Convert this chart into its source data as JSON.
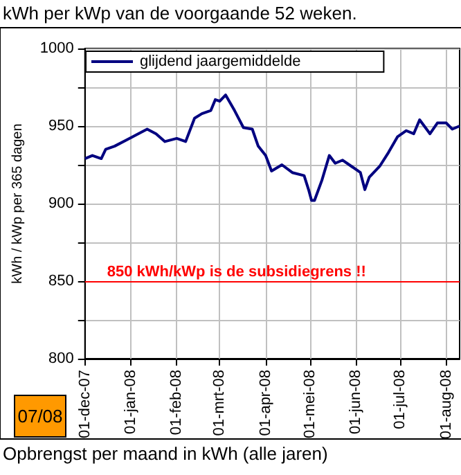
{
  "chart_data": {
    "type": "line",
    "title": "kWh per kWp van de voorgaande 52 weken.",
    "ylabel": "kWh / kWp per 365 dagen",
    "annotations": [
      "07/08",
      "Opbrengst per maand in kWh (alle jaren)"
    ],
    "series": [
      {
        "name": "glijdend jaargemiddelde",
        "color": "#000080",
        "x": [
          "2007-12-01",
          "2007-12-06",
          "2007-12-12",
          "2007-12-15",
          "2007-12-21",
          "2007-12-29",
          "2008-01-06",
          "2008-01-12",
          "2008-01-18",
          "2008-01-24",
          "2008-02-01",
          "2008-02-07",
          "2008-02-13",
          "2008-02-18",
          "2008-02-24",
          "2008-02-27",
          "2008-03-01",
          "2008-03-05",
          "2008-03-11",
          "2008-03-17",
          "2008-03-23",
          "2008-03-27",
          "2008-04-01",
          "2008-04-05",
          "2008-04-12",
          "2008-04-19",
          "2008-04-27",
          "2008-04-30",
          "2008-05-02",
          "2008-05-04",
          "2008-05-09",
          "2008-05-14",
          "2008-05-18",
          "2008-05-23",
          "2008-05-29",
          "2008-06-04",
          "2008-06-07",
          "2008-06-10",
          "2008-06-17",
          "2008-06-23",
          "2008-06-29",
          "2008-07-05",
          "2008-07-10",
          "2008-07-14",
          "2008-07-21",
          "2008-07-26",
          "2008-08-01",
          "2008-08-05",
          "2008-08-10"
        ],
        "values": [
          929,
          931,
          929,
          935,
          937,
          941,
          945,
          948,
          945,
          940,
          942,
          940,
          955,
          958,
          960,
          967,
          966,
          970,
          960,
          949,
          948,
          937,
          931,
          921,
          925,
          920,
          918,
          909,
          902,
          902,
          915,
          931,
          926,
          928,
          924,
          920,
          909,
          917,
          924,
          933,
          943,
          947,
          945,
          954,
          945,
          952,
          952,
          948,
          950
        ]
      }
    ],
    "xlim": [
      "2007-12-01",
      "2008-08-10"
    ],
    "xticks": [
      {
        "value": "2007-12-01",
        "label": "01-dec-07"
      },
      {
        "value": "2008-01-01",
        "label": "01-jan-08"
      },
      {
        "value": "2008-02-01",
        "label": "01-feb-08"
      },
      {
        "value": "2008-03-01",
        "label": "01-mrt-08"
      },
      {
        "value": "2008-04-01",
        "label": "01-apr-08"
      },
      {
        "value": "2008-05-01",
        "label": "01-mei-08"
      },
      {
        "value": "2008-06-01",
        "label": "01-jun-08"
      },
      {
        "value": "2008-07-01",
        "label": "01-jul-08"
      },
      {
        "value": "2008-08-01",
        "label": "01-aug-08"
      }
    ],
    "ylim": [
      800,
      1000
    ],
    "yticks": [
      800,
      {
        "value": 825,
        "label": null
      },
      850,
      {
        "value": 875,
        "label": null
      },
      900,
      {
        "value": 925,
        "label": null
      },
      950,
      {
        "value": 975,
        "label": null
      },
      1000
    ],
    "ref_lines": [
      {
        "axis": "y",
        "value": 850,
        "label": "850 kWh/kWp is de subsidiegrens !!",
        "color": "#ff0000"
      }
    ],
    "grid": true,
    "legend": "top left",
    "marker": "none",
    "line_style": "solid"
  }
}
